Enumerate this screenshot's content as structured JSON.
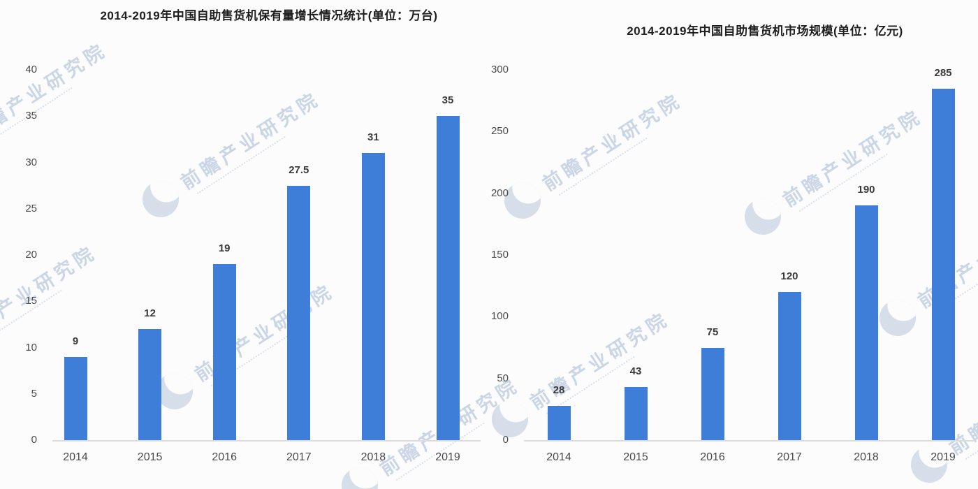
{
  "background": "#fcfcfc",
  "watermark": {
    "text": "前瞻产业研究院",
    "text_color": "#bac9de",
    "logo_color": "#c9d4e3",
    "logo_icon": "qianzhan-circle-logo"
  },
  "chart_data": [
    {
      "type": "bar",
      "title": "2014-2019年中国自助售货机保有量增长情况统计(单位：万台)",
      "unit": "万台",
      "categories": [
        "2014",
        "2015",
        "2016",
        "2017",
        "2018",
        "2019"
      ],
      "values": [
        9,
        12,
        19,
        27.5,
        31,
        35
      ],
      "value_labels": [
        "9",
        "12",
        "19",
        "27.5",
        "31",
        "35"
      ],
      "ylim": [
        0,
        40
      ],
      "y_ticks": [
        0,
        5,
        10,
        15,
        20,
        25,
        30,
        35,
        40
      ],
      "bar_color": "#3e7ed9",
      "xlabel": "",
      "ylabel": "",
      "grid": false,
      "legend": false
    },
    {
      "type": "bar",
      "title": "2014-2019年中国自助售货机市场规模(单位：亿元)",
      "unit": "亿元",
      "categories": [
        "2014",
        "2015",
        "2016",
        "2017",
        "2018",
        "2019"
      ],
      "values": [
        28,
        43,
        75,
        120,
        190,
        285
      ],
      "value_labels": [
        "28",
        "43",
        "75",
        "120",
        "190",
        "285"
      ],
      "ylim": [
        0,
        300
      ],
      "y_ticks": [
        0,
        50,
        100,
        150,
        200,
        250,
        300
      ],
      "bar_color": "#3e7ed9",
      "xlabel": "",
      "ylabel": "",
      "grid": false,
      "legend": false
    }
  ]
}
